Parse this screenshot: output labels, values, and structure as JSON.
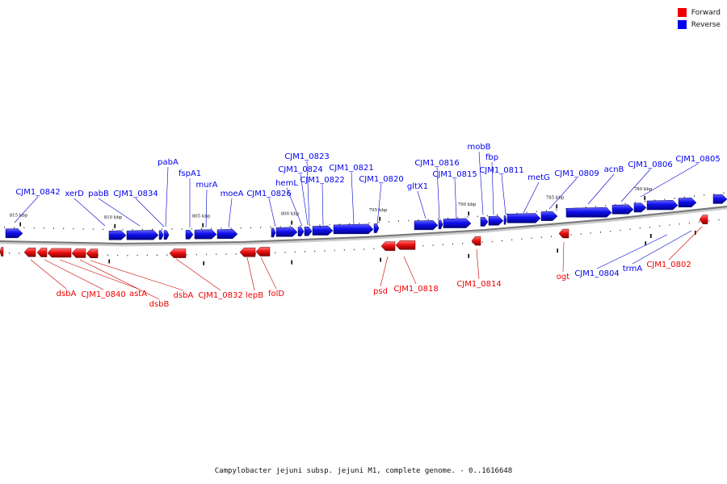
{
  "caption": "Campylobacter jejuni subsp. jejuni M1, complete genome. - 0..1616648",
  "legend": [
    {
      "label": "Forward",
      "color": "#ee0000"
    },
    {
      "label": "Reverse",
      "color": "#0000ee"
    }
  ],
  "colors": {
    "forward": "#ee0000",
    "reverse": "#0000ee",
    "backbone": "#777777",
    "leader": "#0000cc",
    "leader_fwd": "#cc0000"
  },
  "kbp_ticks": [
    "815 kbp",
    "810 kbp",
    "805 kbp",
    "800 kbp",
    "795 kbp",
    "790 kbp",
    "785 kbp",
    "780 kbp"
  ],
  "reverse_labels": [
    "CJM1_0842",
    "xerD",
    "pabB",
    "CJM1_0834",
    "pabA",
    "fspA1",
    "murA",
    "moeA",
    "CJM1_0826",
    "hemL",
    "CJM1_0824",
    "CJM1_0823",
    "CJM1_0822",
    "CJM1_0821",
    "CJM1_0820",
    "gltX1",
    "CJM1_0816",
    "CJM1_0815",
    "mobB",
    "fbp",
    "CJM1_0811",
    "metG",
    "CJM1_0809",
    "acnB",
    "CJM1_0806",
    "CJM1_0805",
    "CJM1_0804",
    "trmA"
  ],
  "forward_labels": [
    "dsbA",
    "CJM1_0840",
    "astA",
    "dsbB",
    "dsbA",
    "CJM1_0832",
    "lepB",
    "folD",
    "psd",
    "CJM1_0818",
    "CJM1_0814",
    "ogt",
    "CJM1_0802"
  ]
}
